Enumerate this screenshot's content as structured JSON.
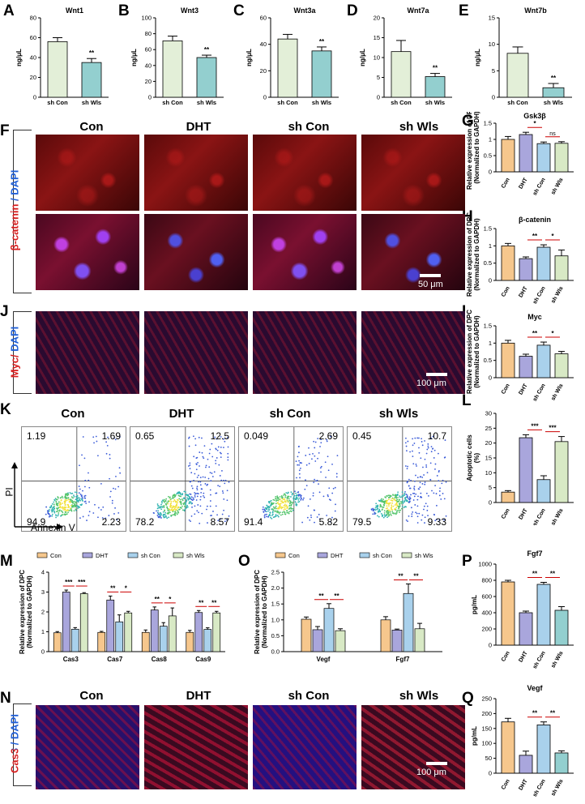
{
  "panels": {
    "A": "A",
    "B": "B",
    "C": "C",
    "D": "D",
    "E": "E",
    "F": "F",
    "G": "G",
    "H": "H",
    "I": "I",
    "J": "J",
    "K": "K",
    "L": "L",
    "M": "M",
    "N": "N",
    "O": "O",
    "P": "P",
    "Q": "Q"
  },
  "groups": [
    "Con",
    "DHT",
    "sh Con",
    "sh Wls"
  ],
  "stains": {
    "F": "β-catenin / DAPI",
    "J": "Myc/ DAPI",
    "N": "Cas3 / DAPI"
  },
  "scalebars": {
    "F": "50 μm",
    "J": "100 μm",
    "N": "100 μm"
  },
  "flow": {
    "xlabel": "Annexin V",
    "ylabel": "PI",
    "plots": [
      {
        "title": "Con",
        "q1": "1.19",
        "q2": "1.69",
        "q3": "2.23",
        "q4": "94.9"
      },
      {
        "title": "DHT",
        "q1": "0.65",
        "q2": "12.5",
        "q3": "8.57",
        "q4": "78.2"
      },
      {
        "title": "sh Con",
        "q1": "0.049",
        "q2": "2.69",
        "q3": "5.82",
        "q4": "91.4"
      },
      {
        "title": "sh Wls",
        "q1": "0.45",
        "q2": "10.7",
        "q3": "9.33",
        "q4": "79.5"
      }
    ]
  },
  "colors": {
    "con": "#f6c78d",
    "dht": "#a9a6dc",
    "shcon": "#a9d1ec",
    "shwls": "#d8e9c5",
    "shConELISA": "#e3efd8",
    "shWlsELISA": "#93cfcf",
    "sigline": "#cc0000"
  },
  "chart_data": [
    {
      "id": "A",
      "type": "bar",
      "title": "Wnt1",
      "ylabel": "ng/μL",
      "categories": [
        "sh Con",
        "sh Wls"
      ],
      "values": [
        56,
        35
      ],
      "errors": [
        4,
        4
      ],
      "ylim": [
        0,
        80
      ],
      "yticks": [
        0,
        20,
        40,
        60,
        80
      ],
      "sig": [
        "**"
      ]
    },
    {
      "id": "B",
      "type": "bar",
      "title": "Wnt3",
      "ylabel": "ng/μL",
      "categories": [
        "sh Con",
        "sh Wls"
      ],
      "values": [
        71,
        50
      ],
      "errors": [
        6,
        3
      ],
      "ylim": [
        0,
        100
      ],
      "yticks": [
        0,
        20,
        40,
        60,
        80,
        100
      ],
      "sig": [
        "**"
      ]
    },
    {
      "id": "C",
      "type": "bar",
      "title": "Wnt3a",
      "ylabel": "ng/μL",
      "categories": [
        "sh Con",
        "sh Wls"
      ],
      "values": [
        44,
        35
      ],
      "errors": [
        3.5,
        3
      ],
      "ylim": [
        0,
        60
      ],
      "yticks": [
        0,
        20,
        40,
        60
      ],
      "sig": [
        "**"
      ]
    },
    {
      "id": "D",
      "type": "bar",
      "title": "Wnt7a",
      "ylabel": "ng/μL",
      "categories": [
        "sh Con",
        "sh Wls"
      ],
      "values": [
        11.5,
        5.2
      ],
      "errors": [
        2.8,
        0.8
      ],
      "ylim": [
        0,
        20
      ],
      "yticks": [
        0,
        5,
        10,
        15,
        20
      ],
      "sig": [
        "**"
      ]
    },
    {
      "id": "E",
      "type": "bar",
      "title": "Wnt7b",
      "ylabel": "ng/μL",
      "categories": [
        "sh Con",
        "sh Wls"
      ],
      "values": [
        8.3,
        1.8
      ],
      "errors": [
        1.2,
        0.8
      ],
      "ylim": [
        0,
        15
      ],
      "yticks": [
        0,
        5,
        10,
        15
      ],
      "sig": [
        "**"
      ]
    },
    {
      "id": "G",
      "type": "bar",
      "title": "Gsk3β",
      "ylabel": "Relative expression of DPC (Normalized to GAPDH)",
      "categories": [
        "Con",
        "DHT",
        "sh Con",
        "sh Wls"
      ],
      "values": [
        1.0,
        1.15,
        0.87,
        0.88
      ],
      "errors": [
        0.09,
        0.07,
        0.05,
        0.05
      ],
      "ylim": [
        0,
        1.5
      ],
      "yticks": [
        0.0,
        0.5,
        1.0,
        1.5
      ],
      "sig": [
        {
          "a": 1,
          "b": 2,
          "t": "*"
        },
        {
          "a": 2,
          "b": 3,
          "t": "ns"
        }
      ]
    },
    {
      "id": "H",
      "type": "bar",
      "title": "β-catenin",
      "ylabel": "Relative expression of DPC (Normalized to GAPDH)",
      "categories": [
        "Con",
        "DHT",
        "sh Con",
        "sh Wls"
      ],
      "values": [
        1.0,
        0.63,
        0.96,
        0.71
      ],
      "errors": [
        0.07,
        0.05,
        0.07,
        0.17
      ],
      "ylim": [
        0,
        1.5
      ],
      "yticks": [
        0.0,
        0.5,
        1.0,
        1.5
      ],
      "sig": [
        {
          "a": 1,
          "b": 2,
          "t": "**"
        },
        {
          "a": 2,
          "b": 3,
          "t": "*"
        }
      ]
    },
    {
      "id": "I",
      "type": "bar",
      "title": "Myc",
      "ylabel": "Relative expression of DPC (Normalized to GAPDH)",
      "categories": [
        "Con",
        "DHT",
        "sh Con",
        "sh Wls"
      ],
      "values": [
        1.0,
        0.62,
        0.94,
        0.69
      ],
      "errors": [
        0.08,
        0.06,
        0.09,
        0.07
      ],
      "ylim": [
        0,
        1.5
      ],
      "yticks": [
        0.0,
        0.5,
        1.0,
        1.5
      ],
      "sig": [
        {
          "a": 1,
          "b": 2,
          "t": "**"
        },
        {
          "a": 2,
          "b": 3,
          "t": "*"
        }
      ]
    },
    {
      "id": "L",
      "type": "bar",
      "title": "",
      "ylabel": "Apoptotic cells(%)",
      "categories": [
        "Con",
        "DHT",
        "sh Con",
        "sh Wls"
      ],
      "values": [
        3.5,
        21.8,
        7.7,
        20.5
      ],
      "errors": [
        0.5,
        1.0,
        1.3,
        1.7
      ],
      "ylim": [
        0,
        30
      ],
      "yticks": [
        0,
        5,
        10,
        15,
        20,
        25,
        30
      ],
      "sig": [
        {
          "a": 1,
          "b": 2,
          "t": "***"
        },
        {
          "a": 2,
          "b": 3,
          "t": "***"
        }
      ]
    },
    {
      "id": "M",
      "type": "bar",
      "title": "",
      "ylabel": "Relative expression of DPC (Normalized to GAPDH)",
      "legend": [
        "Con",
        "DHT",
        "sh Con",
        "sh Wls"
      ],
      "categories": [
        "Cas3",
        "Cas7",
        "Cas8",
        "Cas9"
      ],
      "series": [
        {
          "name": "Con",
          "values": [
            0.95,
            0.97,
            0.97,
            0.97
          ],
          "errors": [
            0.06,
            0.05,
            0.12,
            0.1
          ]
        },
        {
          "name": "DHT",
          "values": [
            3.0,
            2.6,
            2.1,
            1.97
          ],
          "errors": [
            0.1,
            0.2,
            0.15,
            0.1
          ]
        },
        {
          "name": "sh Con",
          "values": [
            1.13,
            1.5,
            1.28,
            1.12
          ],
          "errors": [
            0.08,
            0.35,
            0.18,
            0.08
          ]
        },
        {
          "name": "sh Wls",
          "values": [
            2.92,
            1.95,
            1.8,
            1.95
          ],
          "errors": [
            0.05,
            0.08,
            0.4,
            0.08
          ]
        }
      ],
      "ylim": [
        0,
        4
      ],
      "yticks": [
        0,
        1,
        2,
        3,
        4
      ],
      "sig": [
        {
          "g": 0,
          "pairs": [
            [
              "***",
              1,
              2
            ],
            [
              "***",
              2,
              3
            ]
          ]
        },
        {
          "g": 1,
          "pairs": [
            [
              "**",
              1,
              2
            ],
            [
              "*",
              2,
              3
            ]
          ]
        },
        {
          "g": 2,
          "pairs": [
            [
              "**",
              1,
              2
            ],
            [
              "*",
              2,
              3
            ]
          ]
        },
        {
          "g": 3,
          "pairs": [
            [
              "**",
              1,
              2
            ],
            [
              "**",
              2,
              3
            ]
          ]
        }
      ]
    },
    {
      "id": "O",
      "type": "bar",
      "title": "",
      "ylabel": "Relative expression of DPC (Normalized to GAPDH)",
      "legend": [
        "Con",
        "DHT",
        "sh Con",
        "sh Wls"
      ],
      "categories": [
        "Vegf",
        "Fgf7"
      ],
      "series": [
        {
          "name": "Con",
          "values": [
            1.02,
            1.0
          ],
          "errors": [
            0.07,
            0.1
          ]
        },
        {
          "name": "DHT",
          "values": [
            0.69,
            0.68
          ],
          "errors": [
            0.1,
            0.03
          ]
        },
        {
          "name": "sh Con",
          "values": [
            1.36,
            1.83
          ],
          "errors": [
            0.15,
            0.3
          ]
        },
        {
          "name": "sh Wls",
          "values": [
            0.66,
            0.72
          ],
          "errors": [
            0.06,
            0.17
          ]
        }
      ],
      "ylim": [
        0,
        2.5
      ],
      "yticks": [
        0.0,
        0.5,
        1.0,
        1.5,
        2.0,
        2.5
      ],
      "sig": [
        {
          "g": 0,
          "pairs": [
            [
              "**",
              1,
              2
            ],
            [
              "**",
              2,
              3
            ]
          ]
        },
        {
          "g": 1,
          "pairs": [
            [
              "**",
              1,
              2
            ],
            [
              "**",
              2,
              3
            ]
          ]
        }
      ]
    },
    {
      "id": "P",
      "type": "bar",
      "title": "Fgf7",
      "ylabel": "pg/mL",
      "categories": [
        "Con",
        "DHT",
        "sh Con",
        "sh Wls"
      ],
      "values": [
        780,
        400,
        750,
        430
      ],
      "errors": [
        20,
        20,
        25,
        45
      ],
      "ylim": [
        0,
        1000
      ],
      "yticks": [
        0,
        200,
        400,
        600,
        800,
        1000
      ],
      "sig": [
        {
          "a": 1,
          "b": 2,
          "t": "**"
        },
        {
          "a": 2,
          "b": 3,
          "t": "**"
        }
      ]
    },
    {
      "id": "Q",
      "type": "bar",
      "title": "Vegf",
      "ylabel": "pg/mL",
      "categories": [
        "Con",
        "DHT",
        "sh Con",
        "sh Wls"
      ],
      "values": [
        172,
        60,
        162,
        68
      ],
      "errors": [
        12,
        14,
        10,
        7
      ],
      "ylim": [
        0,
        250
      ],
      "yticks": [
        0,
        50,
        100,
        150,
        200,
        250
      ],
      "sig": [
        {
          "a": 1,
          "b": 2,
          "t": "**"
        },
        {
          "a": 2,
          "b": 3,
          "t": "**"
        }
      ]
    }
  ]
}
